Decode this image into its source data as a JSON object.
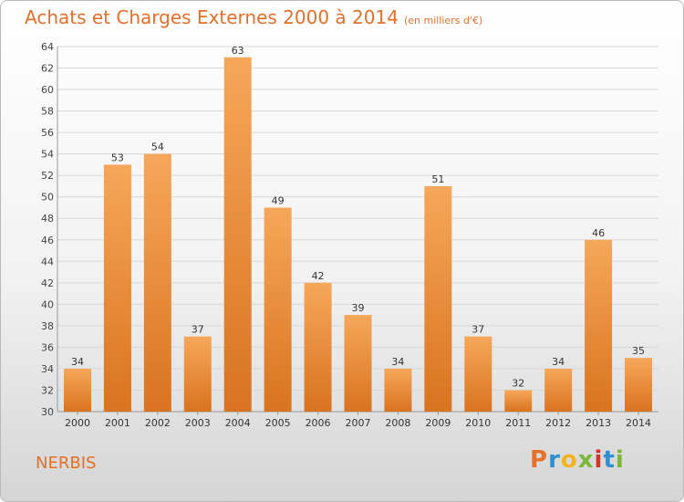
{
  "header": {
    "title": "Achats et Charges Externes 2000 à 2014",
    "unit": "(en milliers d'€)"
  },
  "footer": {
    "commune": "NERBIS",
    "logo_text": "Proxiti"
  },
  "colors": {
    "title": "#e2702b",
    "bar_top": "#f6a75a",
    "bar_bottom": "#d9731f",
    "grid": "#d8d8d8",
    "logo": [
      "#e8712a",
      "#2f8fd0",
      "#f2b51f",
      "#7bb83a",
      "#d7322a",
      "#2f8fd0",
      "#7bb83a"
    ]
  },
  "chart_data": {
    "type": "bar",
    "categories": [
      "2000",
      "2001",
      "2002",
      "2003",
      "2004",
      "2005",
      "2006",
      "2007",
      "2008",
      "2009",
      "2010",
      "2011",
      "2012",
      "2013",
      "2014"
    ],
    "values": [
      34,
      53,
      54,
      37,
      63,
      49,
      42,
      39,
      34,
      51,
      37,
      32,
      34,
      46,
      35
    ],
    "ylim": [
      30,
      64
    ],
    "yticks": [
      30,
      32,
      34,
      36,
      38,
      40,
      42,
      44,
      46,
      48,
      50,
      52,
      54,
      56,
      58,
      60,
      62,
      64
    ],
    "grid": true
  }
}
